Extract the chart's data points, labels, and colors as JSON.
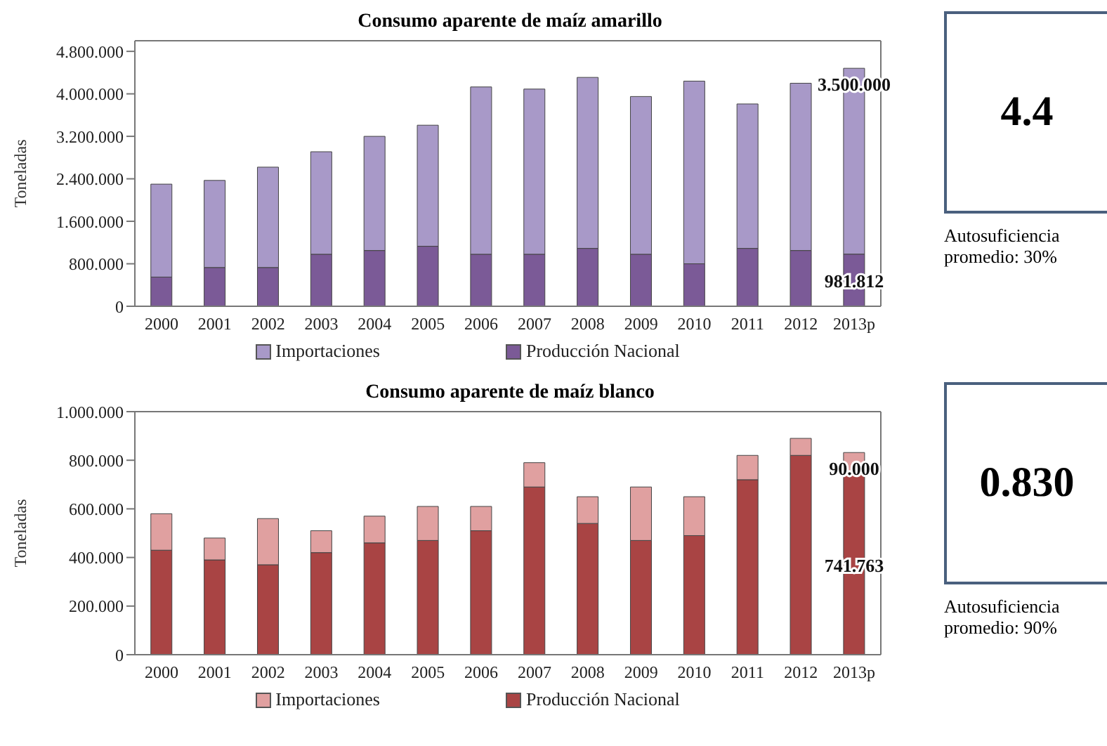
{
  "chart_data": [
    {
      "type": "bar",
      "title": "Consumo aparente de maíz amarillo",
      "ylabel": "Toneladas",
      "stacked": true,
      "legend": "bottom",
      "categories": [
        "2000",
        "2001",
        "2002",
        "2003",
        "2004",
        "2005",
        "2006",
        "2007",
        "2008",
        "2009",
        "2010",
        "2011",
        "2012",
        "2013p"
      ],
      "series": [
        {
          "name": "Producción Nacional",
          "color": "#7b5a97",
          "values": [
            550000,
            730000,
            730000,
            980000,
            1050000,
            1130000,
            980000,
            980000,
            1090000,
            980000,
            800000,
            1090000,
            1050000,
            981812
          ],
          "value_labels": [
            null,
            null,
            null,
            null,
            null,
            null,
            null,
            null,
            null,
            null,
            null,
            null,
            null,
            "981.812"
          ]
        },
        {
          "name": "Importaciones",
          "color": "#a899c8",
          "values": [
            1750000,
            1640000,
            1890000,
            1930000,
            2150000,
            2280000,
            3150000,
            3110000,
            3220000,
            2970000,
            3440000,
            2720000,
            3150000,
            3500000
          ],
          "value_labels": [
            null,
            null,
            null,
            null,
            null,
            null,
            null,
            null,
            null,
            null,
            null,
            null,
            null,
            "3.500.000"
          ]
        }
      ],
      "ylim": [
        0,
        5000000
      ],
      "yticks": [
        {
          "value": 0,
          "label": "0"
        },
        {
          "value": 800000,
          "label": "800.000"
        },
        {
          "value": 1600000,
          "label": "1.600.000"
        },
        {
          "value": 2400000,
          "label": "2.400.000"
        },
        {
          "value": 3200000,
          "label": "3.200.000"
        },
        {
          "value": 4000000,
          "label": "4.000.000"
        },
        {
          "value": 4800000,
          "label": "4.800.000"
        }
      ]
    },
    {
      "type": "other",
      "title": "4.4",
      "annotations": [
        "Autosuficiencia promedio: 30%"
      ]
    },
    {
      "type": "bar",
      "title": "Consumo aparente de maíz blanco",
      "ylabel": "Toneladas",
      "stacked": true,
      "legend": "bottom",
      "categories": [
        "2000",
        "2001",
        "2002",
        "2003",
        "2004",
        "2005",
        "2006",
        "2007",
        "2008",
        "2009",
        "2010",
        "2011",
        "2012",
        "2013p"
      ],
      "series": [
        {
          "name": "Producción Nacional",
          "color": "#a94444",
          "values": [
            430000,
            390000,
            370000,
            420000,
            460000,
            470000,
            510000,
            690000,
            540000,
            470000,
            490000,
            720000,
            820000,
            741763
          ],
          "value_labels": [
            null,
            null,
            null,
            null,
            null,
            null,
            null,
            null,
            null,
            null,
            null,
            null,
            null,
            "741.763"
          ]
        },
        {
          "name": "Importaciones",
          "color": "#e0a0a0",
          "values": [
            150000,
            90000,
            190000,
            90000,
            110000,
            140000,
            100000,
            100000,
            110000,
            220000,
            160000,
            100000,
            70000,
            90000
          ],
          "value_labels": [
            null,
            null,
            null,
            null,
            null,
            null,
            null,
            null,
            null,
            null,
            null,
            null,
            null,
            "90.000"
          ]
        }
      ],
      "ylim": [
        0,
        1000000
      ],
      "yticks": [
        {
          "value": 0,
          "label": "0"
        },
        {
          "value": 200000,
          "label": "200.000"
        },
        {
          "value": 400000,
          "label": "400.000"
        },
        {
          "value": 600000,
          "label": "600.000"
        },
        {
          "value": 800000,
          "label": "800.000"
        },
        {
          "value": 1000000,
          "label": "1.000.000"
        }
      ]
    },
    {
      "type": "other",
      "title": "0.830",
      "annotations": [
        "Autosuficiencia promedio: 90%"
      ]
    }
  ]
}
